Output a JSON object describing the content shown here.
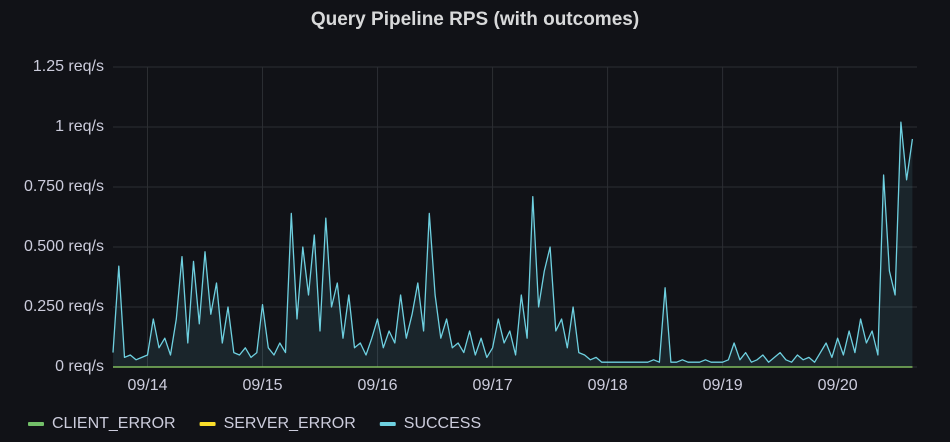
{
  "chart_data": {
    "type": "line",
    "title": "Query Pipeline RPS (with outcomes)",
    "x": [
      13.7,
      13.75,
      13.8,
      13.85,
      13.9,
      13.95,
      14.0,
      14.05,
      14.1,
      14.15,
      14.2,
      14.25,
      14.3,
      14.35,
      14.4,
      14.45,
      14.5,
      14.55,
      14.6,
      14.65,
      14.7,
      14.75,
      14.8,
      14.85,
      14.9,
      14.95,
      15.0,
      15.05,
      15.1,
      15.15,
      15.2,
      15.25,
      15.3,
      15.35,
      15.4,
      15.45,
      15.5,
      15.55,
      15.6,
      15.65,
      15.7,
      15.75,
      15.8,
      15.85,
      15.9,
      15.95,
      16.0,
      16.05,
      16.1,
      16.15,
      16.2,
      16.25,
      16.3,
      16.35,
      16.4,
      16.45,
      16.5,
      16.55,
      16.6,
      16.65,
      16.7,
      16.75,
      16.8,
      16.85,
      16.9,
      16.95,
      17.0,
      17.05,
      17.1,
      17.15,
      17.2,
      17.25,
      17.3,
      17.35,
      17.4,
      17.45,
      17.5,
      17.55,
      17.6,
      17.65,
      17.7,
      17.75,
      17.8,
      17.85,
      17.9,
      17.95,
      18.0,
      18.05,
      18.1,
      18.15,
      18.2,
      18.25,
      18.3,
      18.35,
      18.4,
      18.45,
      18.5,
      18.55,
      18.6,
      18.65,
      18.7,
      18.75,
      18.8,
      18.85,
      18.9,
      18.95,
      19.0,
      19.05,
      19.1,
      19.15,
      19.2,
      19.25,
      19.3,
      19.35,
      19.4,
      19.45,
      19.5,
      19.55,
      19.6,
      19.65,
      19.7,
      19.75,
      19.8,
      19.85,
      19.9,
      19.95,
      20.0,
      20.05,
      20.1,
      20.15,
      20.2,
      20.25,
      20.3,
      20.35,
      20.4,
      20.45,
      20.5,
      20.55,
      20.6,
      20.65
    ],
    "series": [
      {
        "name": "CLIENT_ERROR",
        "color": "#73bf69",
        "values": [
          0,
          0,
          0,
          0,
          0,
          0,
          0,
          0,
          0,
          0,
          0,
          0,
          0,
          0,
          0,
          0,
          0,
          0,
          0,
          0,
          0,
          0,
          0,
          0,
          0,
          0,
          0,
          0,
          0,
          0,
          0,
          0,
          0,
          0,
          0,
          0,
          0,
          0,
          0,
          0,
          0,
          0,
          0,
          0,
          0,
          0,
          0,
          0,
          0,
          0,
          0,
          0,
          0,
          0,
          0,
          0,
          0,
          0,
          0,
          0,
          0,
          0,
          0,
          0,
          0,
          0,
          0,
          0,
          0,
          0,
          0,
          0,
          0,
          0,
          0,
          0,
          0,
          0,
          0,
          0,
          0,
          0,
          0,
          0,
          0,
          0,
          0,
          0,
          0,
          0,
          0,
          0,
          0,
          0,
          0,
          0,
          0,
          0,
          0,
          0,
          0,
          0,
          0,
          0,
          0,
          0,
          0,
          0,
          0,
          0,
          0,
          0,
          0,
          0,
          0,
          0,
          0,
          0,
          0,
          0,
          0,
          0,
          0,
          0,
          0,
          0,
          0,
          0,
          0,
          0,
          0,
          0,
          0,
          0,
          0,
          0,
          0,
          0,
          0,
          0
        ]
      },
      {
        "name": "SERVER_ERROR",
        "color": "#fade2a",
        "values": [
          0,
          0,
          0,
          0,
          0,
          0,
          0,
          0,
          0,
          0,
          0,
          0,
          0,
          0,
          0,
          0,
          0,
          0,
          0,
          0,
          0,
          0,
          0,
          0,
          0,
          0,
          0,
          0,
          0,
          0,
          0,
          0,
          0,
          0,
          0,
          0,
          0,
          0,
          0,
          0,
          0,
          0,
          0,
          0,
          0,
          0,
          0,
          0,
          0,
          0,
          0,
          0,
          0,
          0,
          0,
          0,
          0,
          0,
          0,
          0,
          0,
          0,
          0,
          0,
          0,
          0,
          0,
          0,
          0,
          0,
          0,
          0,
          0,
          0,
          0,
          0,
          0,
          0,
          0,
          0,
          0,
          0,
          0,
          0,
          0,
          0,
          0,
          0,
          0,
          0,
          0,
          0,
          0,
          0,
          0,
          0,
          0,
          0,
          0,
          0,
          0,
          0,
          0,
          0,
          0,
          0,
          0,
          0,
          0,
          0,
          0,
          0,
          0,
          0,
          0,
          0,
          0,
          0,
          0,
          0,
          0,
          0,
          0,
          0,
          0,
          0,
          0,
          0,
          0,
          0,
          0,
          0,
          0,
          0,
          0,
          0,
          0,
          0,
          0,
          0
        ]
      },
      {
        "name": "SUCCESS",
        "color": "#6ed0e0",
        "values": [
          0.06,
          0.42,
          0.04,
          0.05,
          0.03,
          0.04,
          0.05,
          0.2,
          0.08,
          0.12,
          0.05,
          0.2,
          0.46,
          0.1,
          0.44,
          0.18,
          0.48,
          0.22,
          0.35,
          0.1,
          0.25,
          0.06,
          0.05,
          0.08,
          0.04,
          0.06,
          0.26,
          0.08,
          0.05,
          0.1,
          0.06,
          0.64,
          0.2,
          0.5,
          0.3,
          0.55,
          0.15,
          0.62,
          0.25,
          0.35,
          0.12,
          0.3,
          0.08,
          0.1,
          0.05,
          0.12,
          0.2,
          0.08,
          0.15,
          0.1,
          0.3,
          0.12,
          0.22,
          0.35,
          0.15,
          0.64,
          0.3,
          0.12,
          0.2,
          0.08,
          0.1,
          0.06,
          0.15,
          0.05,
          0.12,
          0.04,
          0.08,
          0.2,
          0.1,
          0.15,
          0.05,
          0.3,
          0.12,
          0.71,
          0.25,
          0.4,
          0.5,
          0.15,
          0.2,
          0.08,
          0.25,
          0.06,
          0.05,
          0.03,
          0.04,
          0.02,
          0.02,
          0.02,
          0.02,
          0.02,
          0.02,
          0.02,
          0.02,
          0.02,
          0.03,
          0.02,
          0.33,
          0.02,
          0.02,
          0.03,
          0.02,
          0.02,
          0.02,
          0.03,
          0.02,
          0.02,
          0.02,
          0.03,
          0.1,
          0.03,
          0.06,
          0.02,
          0.03,
          0.05,
          0.02,
          0.04,
          0.06,
          0.03,
          0.02,
          0.05,
          0.03,
          0.04,
          0.02,
          0.06,
          0.1,
          0.04,
          0.12,
          0.05,
          0.15,
          0.06,
          0.2,
          0.1,
          0.15,
          0.05,
          0.8,
          0.4,
          0.3,
          1.02,
          0.78,
          0.95
        ]
      }
    ],
    "xlim": [
      13.7,
      20.69
    ],
    "xticks": [
      {
        "value": 14,
        "label": "09/14"
      },
      {
        "value": 15,
        "label": "09/15"
      },
      {
        "value": 16,
        "label": "09/16"
      },
      {
        "value": 17,
        "label": "09/17"
      },
      {
        "value": 18,
        "label": "09/18"
      },
      {
        "value": 19,
        "label": "09/19"
      },
      {
        "value": 20,
        "label": "09/20"
      }
    ],
    "ylim": [
      0,
      1.25
    ],
    "yticks": [
      {
        "value": 0,
        "label": "0 req/s"
      },
      {
        "value": 0.25,
        "label": "0.250 req/s"
      },
      {
        "value": 0.5,
        "label": "0.500 req/s"
      },
      {
        "value": 0.75,
        "label": "0.750 req/s"
      },
      {
        "value": 1,
        "label": "1 req/s"
      },
      {
        "value": 1.25,
        "label": "1.25 req/s"
      }
    ],
    "grid": true
  }
}
